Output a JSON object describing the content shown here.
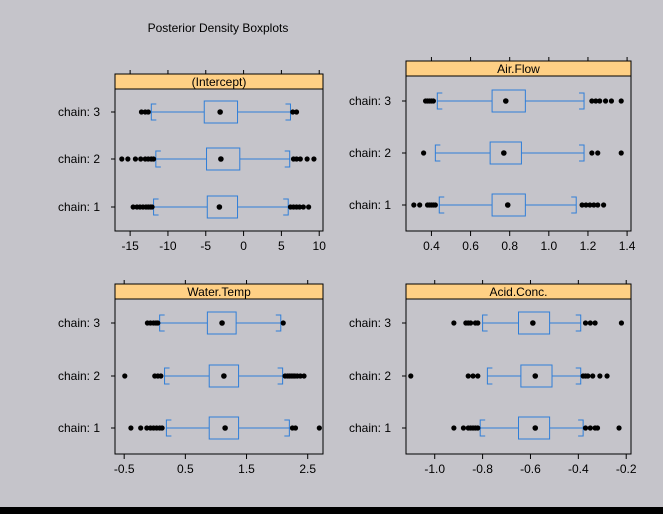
{
  "title": "Posterior Density Boxplots",
  "colors": {
    "background": "#c5c4ca",
    "strip": "#ffd085",
    "box": "#2f7ed8",
    "outlier": "#000000",
    "frame": "#000000"
  },
  "chart_data": {
    "type": "boxplot",
    "layout": "2x2 panels",
    "categories": [
      "chain: 1",
      "chain: 2",
      "chain: 3"
    ],
    "panels": [
      {
        "name": "(Intercept)",
        "xlim": [
          -17,
          10.5
        ],
        "ticks": [
          -15,
          -10,
          -5,
          0,
          5,
          10
        ],
        "tick_labels": [
          "-15",
          "-10",
          "-5",
          "0",
          "5",
          "10"
        ],
        "boxes": [
          {
            "chain": "chain: 1",
            "whisker_low": -11.9,
            "q1": -4.8,
            "median": -3.2,
            "q3": -0.8,
            "whisker_high": 5.9,
            "outliers": [
              -14.6,
              -14.1,
              -13.7,
              -13.3,
              -12.9,
              -12.6,
              -12.3,
              -12.1,
              6.2,
              6.6,
              7.0,
              7.4,
              7.9,
              8.6
            ]
          },
          {
            "chain": "chain: 2",
            "whisker_low": -11.6,
            "q1": -4.9,
            "median": -3.0,
            "q3": -0.5,
            "whisker_high": 6.1,
            "outliers": [
              -16.1,
              -15.3,
              -14.3,
              -13.6,
              -13.0,
              -12.6,
              -12.2,
              -11.9,
              6.6,
              7.0,
              7.5,
              8.4,
              9.3
            ]
          },
          {
            "chain": "chain: 3",
            "whisker_low": -12.2,
            "q1": -5.2,
            "median": -3.1,
            "q3": -0.8,
            "whisker_high": 6.2,
            "outliers": [
              -13.5,
              -13.0,
              -12.6,
              6.5,
              7.0
            ]
          }
        ]
      },
      {
        "name": "Air.Flow",
        "xlim": [
          0.27,
          1.42
        ],
        "ticks": [
          0.4,
          0.6,
          0.8,
          1.0,
          1.2,
          1.4
        ],
        "tick_labels": [
          "0.4",
          "0.6",
          "0.8",
          "1.0",
          "1.2",
          "1.4"
        ],
        "boxes": [
          {
            "chain": "chain: 1",
            "whisker_low": 0.44,
            "q1": 0.71,
            "median": 0.79,
            "q3": 0.88,
            "whisker_high": 1.14,
            "outliers": [
              0.31,
              0.34,
              0.38,
              0.39,
              0.4,
              0.41,
              0.42,
              1.17,
              1.19,
              1.21,
              1.23,
              1.25,
              1.28
            ]
          },
          {
            "chain": "chain: 2",
            "whisker_low": 0.42,
            "q1": 0.7,
            "median": 0.77,
            "q3": 0.86,
            "whisker_high": 1.18,
            "outliers": [
              0.36,
              1.22,
              1.25,
              1.37
            ]
          },
          {
            "chain": "chain: 3",
            "whisker_low": 0.43,
            "q1": 0.71,
            "median": 0.78,
            "q3": 0.88,
            "whisker_high": 1.18,
            "outliers": [
              0.37,
              0.38,
              0.39,
              0.4,
              0.41,
              1.22,
              1.24,
              1.26,
              1.29,
              1.32,
              1.37
            ]
          }
        ]
      },
      {
        "name": "Water.Temp",
        "xlim": [
          -0.65,
          2.75
        ],
        "ticks": [
          -0.5,
          0.5,
          1.5,
          2.5
        ],
        "tick_labels": [
          "-0.5",
          "0.5",
          "1.5",
          "2.5"
        ],
        "boxes": [
          {
            "chain": "chain: 1",
            "whisker_low": 0.19,
            "q1": 0.89,
            "median": 1.15,
            "q3": 1.37,
            "whisker_high": 2.2,
            "outliers": [
              -0.39,
              -0.23,
              -0.13,
              -0.07,
              -0.02,
              0.03,
              0.08,
              0.12,
              2.25,
              2.3,
              2.69
            ]
          },
          {
            "chain": "chain: 2",
            "whisker_low": 0.16,
            "q1": 0.89,
            "median": 1.13,
            "q3": 1.37,
            "whisker_high": 2.09,
            "outliers": [
              -0.49,
              0.0,
              0.05,
              0.1,
              2.13,
              2.17,
              2.2,
              2.23,
              2.26,
              2.29,
              2.33,
              2.38,
              2.44
            ]
          },
          {
            "chain": "chain: 3",
            "whisker_low": 0.08,
            "q1": 0.86,
            "median": 1.1,
            "q3": 1.33,
            "whisker_high": 2.06,
            "outliers": [
              -0.12,
              -0.07,
              -0.02,
              0.02,
              0.05,
              2.1
            ]
          }
        ]
      },
      {
        "name": "Acid.Conc.",
        "xlim": [
          -1.12,
          -0.18
        ],
        "ticks": [
          -1.0,
          -0.8,
          -0.6,
          -0.4,
          -0.2
        ],
        "tick_labels": [
          "-1.0",
          "-0.8",
          "-0.6",
          "-0.4",
          "-0.2"
        ],
        "boxes": [
          {
            "chain": "chain: 1",
            "whisker_low": -0.81,
            "q1": -0.65,
            "median": -0.58,
            "q3": -0.52,
            "whisker_high": -0.38,
            "outliers": [
              -0.92,
              -0.88,
              -0.86,
              -0.85,
              -0.84,
              -0.83,
              -0.82,
              -0.37,
              -0.35,
              -0.33,
              -0.32,
              -0.23
            ]
          },
          {
            "chain": "chain: 2",
            "whisker_low": -0.78,
            "q1": -0.64,
            "median": -0.58,
            "q3": -0.51,
            "whisker_high": -0.39,
            "outliers": [
              -1.1,
              -0.86,
              -0.84,
              -0.82,
              -0.38,
              -0.37,
              -0.36,
              -0.34,
              -0.31,
              -0.28
            ]
          },
          {
            "chain": "chain: 3",
            "whisker_low": -0.8,
            "q1": -0.65,
            "median": -0.59,
            "q3": -0.52,
            "whisker_high": -0.39,
            "outliers": [
              -0.92,
              -0.87,
              -0.86,
              -0.85,
              -0.83,
              -0.82,
              -0.37,
              -0.35,
              -0.33,
              -0.22
            ]
          }
        ]
      }
    ]
  }
}
